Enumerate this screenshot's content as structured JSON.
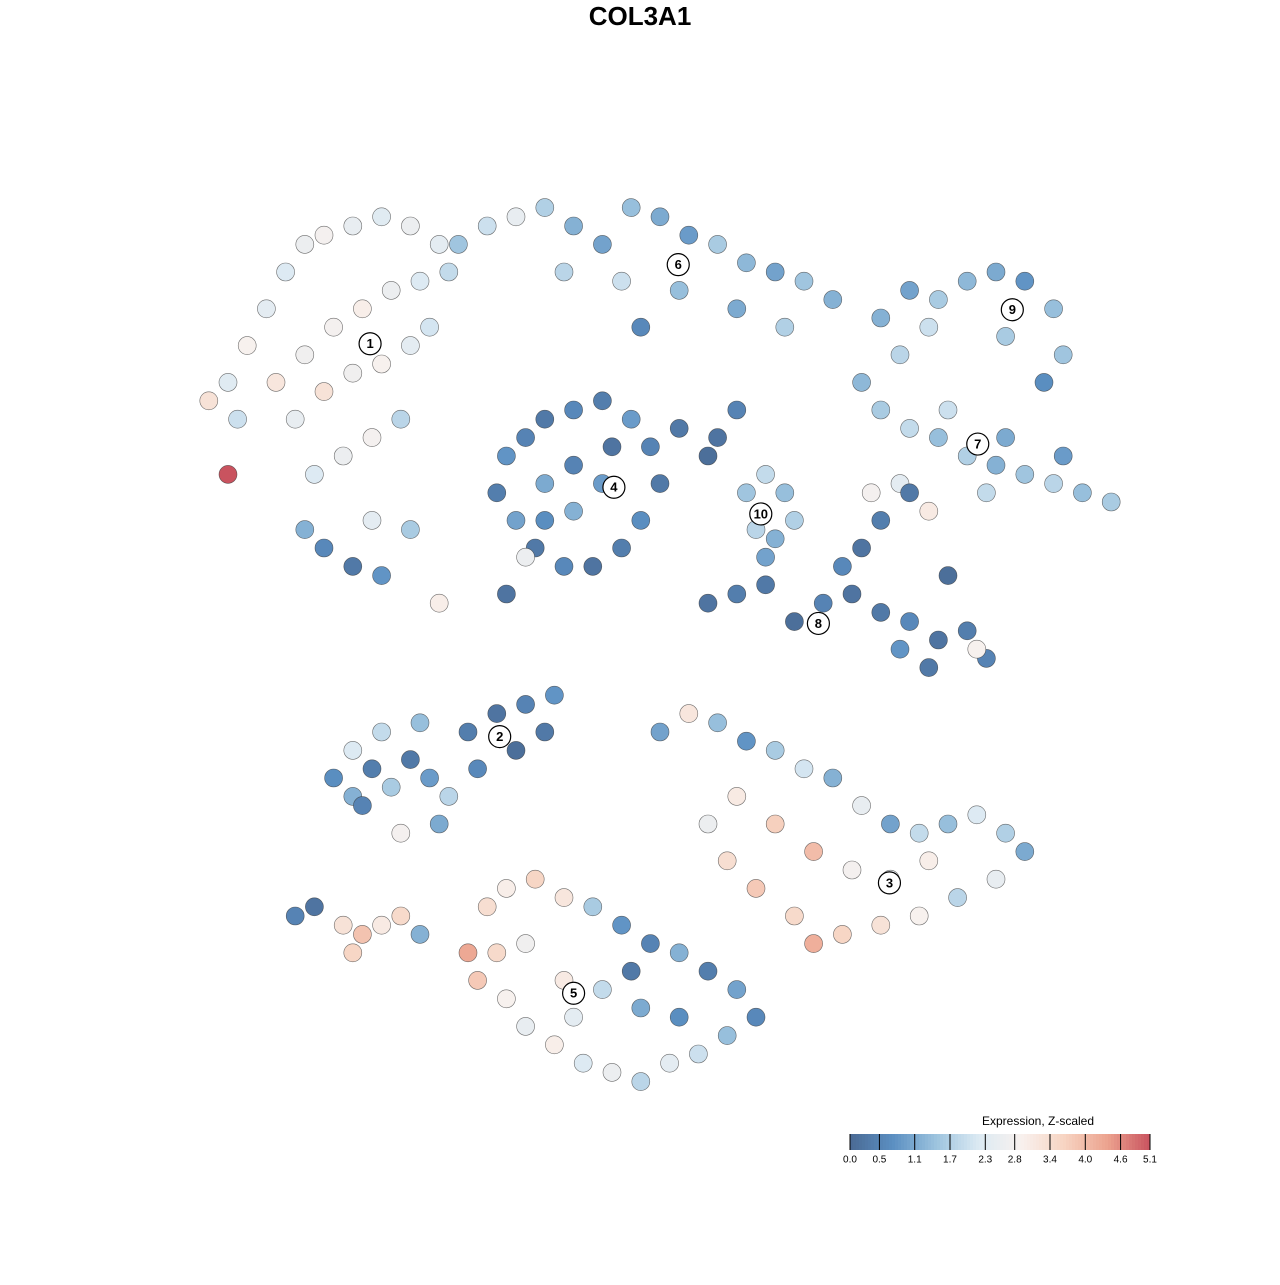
{
  "chart_data": {
    "type": "scatter",
    "title": "COL3A1",
    "xlim": [
      0,
      100
    ],
    "ylim": [
      0,
      100
    ],
    "x": [
      5,
      7,
      9,
      11,
      13,
      15,
      18,
      21,
      24,
      27,
      6,
      10,
      13,
      16,
      19,
      22,
      25,
      28,
      12,
      15,
      18,
      21,
      24,
      26,
      14,
      17,
      20,
      23,
      5,
      3,
      15,
      18,
      21,
      13,
      20,
      24,
      29,
      32,
      35,
      38,
      41,
      44,
      47,
      50,
      53,
      56,
      59,
      62,
      65,
      68,
      40,
      46,
      52,
      58,
      63,
      48,
      73,
      76,
      79,
      82,
      85,
      88,
      91,
      92,
      90,
      78,
      75,
      86,
      71,
      73,
      76,
      79,
      82,
      85,
      88,
      91,
      94,
      97,
      80,
      86,
      92,
      75,
      78,
      84,
      34,
      36,
      38,
      41,
      44,
      47,
      49,
      50,
      48,
      46,
      43,
      40,
      37,
      35,
      33,
      38,
      41,
      44,
      41,
      45,
      38,
      36,
      59,
      61,
      63,
      60,
      62,
      64,
      61,
      52,
      56,
      58,
      55,
      55,
      58,
      61,
      64,
      67,
      70,
      73,
      76,
      79,
      82,
      84,
      78,
      75,
      71,
      73,
      76,
      80,
      72,
      83,
      69,
      27,
      34,
      16,
      18,
      20,
      22,
      24,
      26,
      28,
      30,
      33,
      36,
      38,
      25,
      21,
      18,
      31,
      35,
      27,
      23,
      19,
      39,
      50,
      53,
      56,
      59,
      62,
      65,
      68,
      71,
      74,
      77,
      80,
      83,
      86,
      88,
      85,
      81,
      77,
      73,
      69,
      66,
      64,
      60,
      57,
      55,
      58,
      62,
      66,
      70,
      74,
      78,
      32,
      34,
      37,
      40,
      43,
      46,
      49,
      52,
      55,
      58,
      60,
      57,
      54,
      51,
      48,
      45,
      42,
      39,
      36,
      34,
      31,
      33,
      36,
      40,
      44,
      48,
      52,
      47,
      41,
      30,
      12,
      14,
      17,
      19,
      21,
      23,
      25,
      18
    ],
    "y": [
      78,
      82,
      86,
      90,
      93,
      94,
      95,
      96,
      95,
      93,
      74,
      78,
      81,
      84,
      86,
      88,
      89,
      90,
      74,
      77,
      79,
      80,
      82,
      84,
      68,
      70,
      72,
      74,
      68,
      76,
      60,
      58,
      57,
      62,
      63,
      62,
      93,
      95,
      96,
      97,
      95,
      93,
      97,
      96,
      94,
      93,
      91,
      90,
      89,
      87,
      90,
      89,
      88,
      86,
      84,
      84,
      85,
      88,
      87,
      89,
      90,
      89,
      86,
      81,
      78,
      84,
      81,
      83,
      78,
      75,
      73,
      72,
      70,
      69,
      68,
      67,
      66,
      65,
      75,
      72,
      70,
      67,
      64,
      66,
      70,
      72,
      74,
      75,
      76,
      74,
      71,
      67,
      63,
      60,
      58,
      58,
      60,
      63,
      66,
      67,
      69,
      67,
      64,
      71,
      63,
      59,
      66,
      68,
      66,
      62,
      61,
      63,
      59,
      73,
      72,
      75,
      70,
      54,
      55,
      56,
      52,
      54,
      55,
      53,
      52,
      50,
      51,
      48,
      47,
      49,
      60,
      63,
      66,
      57,
      66,
      49,
      58,
      54,
      55,
      35,
      33,
      36,
      34,
      37,
      35,
      33,
      40,
      42,
      43,
      40,
      41,
      40,
      38,
      36,
      38,
      30,
      29,
      32,
      44,
      40,
      42,
      41,
      39,
      38,
      36,
      35,
      32,
      30,
      29,
      30,
      31,
      29,
      27,
      24,
      22,
      20,
      19,
      18,
      17,
      20,
      23,
      26,
      30,
      33,
      30,
      27,
      25,
      24,
      26,
      21,
      23,
      24,
      22,
      21,
      19,
      17,
      16,
      14,
      12,
      9,
      7,
      5,
      4,
      2,
      3,
      4,
      6,
      8,
      11,
      13,
      16,
      17,
      13,
      12,
      10,
      9,
      14,
      9,
      16,
      20,
      21,
      19,
      18,
      19,
      20,
      18,
      16
    ],
    "values": [
      2.3,
      2.9,
      2.4,
      2.2,
      2.6,
      2.8,
      2.5,
      2.3,
      2.6,
      2.4,
      2.0,
      3.2,
      2.7,
      2.8,
      3.0,
      2.6,
      2.2,
      1.9,
      2.5,
      3.3,
      2.7,
      2.9,
      2.4,
      2.1,
      2.2,
      2.6,
      2.8,
      1.8,
      5.1,
      3.3,
      0.6,
      0.3,
      0.8,
      1.2,
      2.4,
      1.6,
      1.5,
      2.0,
      2.5,
      1.7,
      1.2,
      1.0,
      1.4,
      1.1,
      0.9,
      1.6,
      1.3,
      1.0,
      1.5,
      1.2,
      1.8,
      2.0,
      1.4,
      1.1,
      1.7,
      0.6,
      1.2,
      1.0,
      1.6,
      1.3,
      1.1,
      0.8,
      1.4,
      1.5,
      0.7,
      2.0,
      1.8,
      1.6,
      1.3,
      1.6,
      1.9,
      1.4,
      1.7,
      1.2,
      1.5,
      1.8,
      1.4,
      1.6,
      2.0,
      1.1,
      0.9,
      2.4,
      3.1,
      1.9,
      0.8,
      0.5,
      0.3,
      0.6,
      0.4,
      0.9,
      0.5,
      0.3,
      0.7,
      0.4,
      0.2,
      0.6,
      0.3,
      1.0,
      0.4,
      1.1,
      0.5,
      0.9,
      1.2,
      0.2,
      0.7,
      2.6,
      1.5,
      1.9,
      1.4,
      1.8,
      1.2,
      1.7,
      1.0,
      0.3,
      0.2,
      0.5,
      0.1,
      0.2,
      0.4,
      0.3,
      0.1,
      0.5,
      0.2,
      0.3,
      0.6,
      0.2,
      0.4,
      0.5,
      0.3,
      0.8,
      0.2,
      0.4,
      0.3,
      0.1,
      2.8,
      2.9,
      0.6,
      3.0,
      0.2,
      0.7,
      1.2,
      0.4,
      1.6,
      0.3,
      0.9,
      1.8,
      0.4,
      0.2,
      0.5,
      0.3,
      1.4,
      1.9,
      2.2,
      0.6,
      0.1,
      1.1,
      2.8,
      0.5,
      0.8,
      1.0,
      3.2,
      1.4,
      0.8,
      1.6,
      2.1,
      1.2,
      2.5,
      1.0,
      1.9,
      1.4,
      2.2,
      1.7,
      1.1,
      2.5,
      1.8,
      2.9,
      3.3,
      3.6,
      4.2,
      3.5,
      3.8,
      3.4,
      2.6,
      3.1,
      3.7,
      4.0,
      2.8,
      2.5,
      3.0,
      3.4,
      3.0,
      3.6,
      3.2,
      1.6,
      0.8,
      0.5,
      1.2,
      0.4,
      1.0,
      0.6,
      1.4,
      2.0,
      2.4,
      1.8,
      2.6,
      2.2,
      3.0,
      2.5,
      2.9,
      3.8,
      3.5,
      2.7,
      3.1,
      1.9,
      1.1,
      0.7,
      0.3,
      2.4,
      4.3,
      0.5,
      0.2,
      3.3,
      3.9,
      3.1,
      3.5,
      1.2,
      3.6
    ],
    "clusters": [
      {
        "label": "1",
        "x": 19.8,
        "y": 82.2
      },
      {
        "label": "2",
        "x": 33.3,
        "y": 39.5
      },
      {
        "label": "3",
        "x": 73.9,
        "y": 23.6
      },
      {
        "label": "4",
        "x": 45.2,
        "y": 66.6
      },
      {
        "label": "5",
        "x": 41.0,
        "y": 11.6
      },
      {
        "label": "6",
        "x": 51.9,
        "y": 90.8
      },
      {
        "label": "7",
        "x": 83.1,
        "y": 71.3
      },
      {
        "label": "8",
        "x": 66.5,
        "y": 51.8
      },
      {
        "label": "9",
        "x": 86.7,
        "y": 85.9
      },
      {
        "label": "10",
        "x": 60.5,
        "y": 63.7
      }
    ],
    "colorbar": {
      "title": "Expression, Z-scaled",
      "clim": [
        0,
        5.1
      ],
      "colors": [
        "#4a6a94",
        "#5b8fc2",
        "#9cc3de",
        "#dceaf3",
        "#f8f1ee",
        "#f7d4c2",
        "#eca38f",
        "#c9535f"
      ],
      "ticks": [
        {
          "value": 0,
          "label": "0.0"
        },
        0.5,
        1.1,
        1.7,
        2.3,
        2.8,
        3.4,
        {
          "value": 4,
          "label": "4.0"
        },
        4.6,
        5.1
      ]
    }
  }
}
